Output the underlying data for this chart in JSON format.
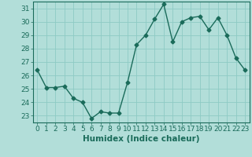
{
  "x": [
    0,
    1,
    2,
    3,
    4,
    5,
    6,
    7,
    8,
    9,
    10,
    11,
    12,
    13,
    14,
    15,
    16,
    17,
    18,
    19,
    20,
    21,
    22,
    23
  ],
  "y": [
    26.4,
    25.1,
    25.1,
    25.2,
    24.3,
    24.0,
    22.8,
    23.3,
    23.2,
    23.2,
    25.5,
    28.3,
    29.0,
    30.2,
    31.3,
    28.5,
    30.0,
    30.3,
    30.4,
    29.4,
    30.3,
    29.0,
    27.3,
    26.4
  ],
  "line_color": "#1a6b5a",
  "marker": "D",
  "marker_size": 2.5,
  "bg_color": "#b2ded9",
  "grid_color": "#8ecac4",
  "xlabel": "Humidex (Indice chaleur)",
  "xlim": [
    -0.5,
    23.5
  ],
  "ylim": [
    22.5,
    31.5
  ],
  "yticks": [
    23,
    24,
    25,
    26,
    27,
    28,
    29,
    30,
    31
  ],
  "xticks": [
    0,
    1,
    2,
    3,
    4,
    5,
    6,
    7,
    8,
    9,
    10,
    11,
    12,
    13,
    14,
    15,
    16,
    17,
    18,
    19,
    20,
    21,
    22,
    23
  ],
  "tick_label_fontsize": 6.5,
  "xlabel_fontsize": 7.5,
  "line_width": 1.0
}
